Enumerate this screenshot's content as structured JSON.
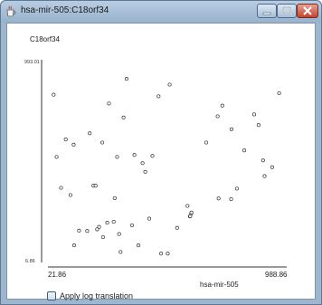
{
  "window": {
    "title": "hsa-mir-505:C18orf34",
    "icon": "java-cup-icon",
    "buttons": {
      "minimize": "minimize-icon",
      "maximize": "maximize-icon",
      "close": "close-icon"
    }
  },
  "controls": {
    "log_translation_label": "Apply log translation",
    "log_translation_checked": false
  },
  "chart_data": {
    "type": "scatter",
    "xlabel": "hsa-mir-505",
    "ylabel": "C18orf34",
    "xlim": [
      21.86,
      988.86
    ],
    "ylim": [
      6.86,
      993.01
    ],
    "x_tick_labels": [
      "21.86",
      "988.86"
    ],
    "y_tick_labels": [
      "993.01",
      "6.86"
    ],
    "grid": false,
    "points": [
      [
        45,
        823
      ],
      [
        57,
        520
      ],
      [
        75,
        370
      ],
      [
        94,
        605
      ],
      [
        113,
        335
      ],
      [
        126,
        580
      ],
      [
        128,
        90
      ],
      [
        148,
        162
      ],
      [
        181,
        160
      ],
      [
        191,
        635
      ],
      [
        206,
        380
      ],
      [
        215,
        380
      ],
      [
        221,
        168
      ],
      [
        229,
        180
      ],
      [
        242,
        590
      ],
      [
        245,
        130
      ],
      [
        262,
        200
      ],
      [
        269,
        780
      ],
      [
        288,
        205
      ],
      [
        292,
        320
      ],
      [
        302,
        520
      ],
      [
        310,
        145
      ],
      [
        316,
        58
      ],
      [
        328,
        712
      ],
      [
        340,
        900
      ],
      [
        362,
        188
      ],
      [
        372,
        530
      ],
      [
        388,
        90
      ],
      [
        405,
        490
      ],
      [
        416,
        448
      ],
      [
        432,
        220
      ],
      [
        445,
        525
      ],
      [
        470,
        815
      ],
      [
        480,
        50
      ],
      [
        507,
        50
      ],
      [
        515,
        872
      ],
      [
        545,
        175
      ],
      [
        587,
        282
      ],
      [
        597,
        231
      ],
      [
        598,
        232
      ],
      [
        602,
        245
      ],
      [
        603,
        250
      ],
      [
        663,
        590
      ],
      [
        709,
        718
      ],
      [
        713,
        318
      ],
      [
        728,
        770
      ],
      [
        764,
        315
      ],
      [
        765,
        655
      ],
      [
        787,
        366
      ],
      [
        817,
        552
      ],
      [
        857,
        727
      ],
      [
        875,
        675
      ],
      [
        893,
        503
      ],
      [
        899,
        427
      ],
      [
        930,
        470
      ],
      [
        958,
        830
      ]
    ]
  }
}
